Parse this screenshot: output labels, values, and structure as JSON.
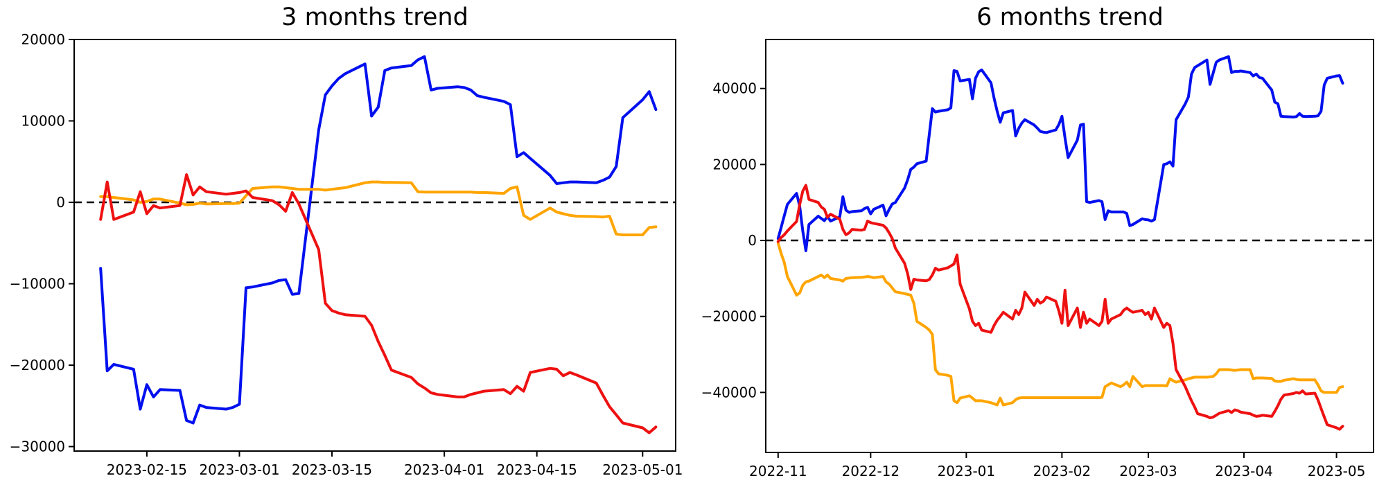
{
  "figure": {
    "background": "#ffffff"
  },
  "chart_data": [
    {
      "type": "line",
      "title": "3 months trend",
      "xlabel": "",
      "ylabel": "",
      "grid": false,
      "legend": null,
      "zero_line": {
        "value": 0,
        "style": "dashed",
        "color": "#000000"
      },
      "y_ticks": [
        20000,
        10000,
        0,
        -10000,
        -20000,
        -30000
      ],
      "y_tick_labels": [
        "20000",
        "10000",
        "0",
        "−10000",
        "−20000",
        "−30000"
      ],
      "x_tick_dates": [
        "2023-02-15",
        "2023-03-01",
        "2023-03-15",
        "2023-04-01",
        "2023-04-15",
        "2023-05-01"
      ],
      "x_tick_labels": [
        "2023-02-15",
        "2023-03-01",
        "2023-03-15",
        "2023-04-01",
        "2023-04-15",
        "2023-05-01"
      ],
      "x_range": [
        "2023-02-04",
        "2023-05-06"
      ],
      "y_range": [
        -30550,
        20000
      ],
      "dates": [
        "2023-02-08",
        "2023-02-09",
        "2023-02-10",
        "2023-02-13",
        "2023-02-14",
        "2023-02-15",
        "2023-02-16",
        "2023-02-17",
        "2023-02-20",
        "2023-02-21",
        "2023-02-22",
        "2023-02-23",
        "2023-02-24",
        "2023-02-27",
        "2023-02-28",
        "2023-03-01",
        "2023-03-02",
        "2023-03-03",
        "2023-03-06",
        "2023-03-07",
        "2023-03-08",
        "2023-03-09",
        "2023-03-10",
        "2023-03-13",
        "2023-03-14",
        "2023-03-15",
        "2023-03-16",
        "2023-03-17",
        "2023-03-20",
        "2023-03-21",
        "2023-03-22",
        "2023-03-23",
        "2023-03-24",
        "2023-03-27",
        "2023-03-28",
        "2023-03-29",
        "2023-03-30",
        "2023-03-31",
        "2023-04-03",
        "2023-04-04",
        "2023-04-05",
        "2023-04-06",
        "2023-04-07",
        "2023-04-10",
        "2023-04-11",
        "2023-04-12",
        "2023-04-13",
        "2023-04-14",
        "2023-04-17",
        "2023-04-18",
        "2023-04-19",
        "2023-04-20",
        "2023-04-21",
        "2023-04-24",
        "2023-04-25",
        "2023-04-26",
        "2023-04-27",
        "2023-04-28",
        "2023-05-01",
        "2023-05-02",
        "2023-05-03"
      ],
      "series": [
        {
          "name": "blue-line",
          "color": "#0010ee",
          "values": [
            -8100,
            -20700,
            -19900,
            -20500,
            -25400,
            -22400,
            -23900,
            -23000,
            -23100,
            -26800,
            -27100,
            -24900,
            -25200,
            -25400,
            -25200,
            -24800,
            -10500,
            -10400,
            -9900,
            -9600,
            -9500,
            -11300,
            -11200,
            8900,
            13200,
            14300,
            15200,
            15800,
            17000,
            10600,
            11700,
            16200,
            16500,
            16800,
            17500,
            17900,
            13800,
            14000,
            14200,
            14100,
            13800,
            13100,
            12900,
            12400,
            12000,
            5600,
            6100,
            5400,
            3300,
            2300,
            2400,
            2500,
            2500,
            2400,
            2700,
            3100,
            4400,
            10400,
            12600,
            13600,
            11400
          ]
        },
        {
          "name": "orange-line",
          "color": "#ffa500",
          "values": [
            700,
            700,
            600,
            300,
            0,
            100,
            400,
            400,
            -100,
            -300,
            -250,
            -100,
            -200,
            -150,
            -150,
            -100,
            800,
            1700,
            1900,
            1900,
            1800,
            1700,
            1600,
            1600,
            1500,
            1600,
            1700,
            1800,
            2400,
            2500,
            2500,
            2450,
            2450,
            2400,
            1300,
            1250,
            1250,
            1250,
            1250,
            1250,
            1250,
            1200,
            1200,
            1100,
            1700,
            1900,
            -1600,
            -2100,
            -700,
            -1200,
            -1400,
            -1600,
            -1700,
            -1750,
            -1800,
            -1700,
            -3900,
            -4000,
            -4000,
            -3100,
            -3000
          ]
        },
        {
          "name": "red-line",
          "color": "#ee1111",
          "values": [
            -2100,
            2500,
            -2100,
            -1200,
            1300,
            -1400,
            -400,
            -700,
            -400,
            3400,
            900,
            1900,
            1300,
            1000,
            1100,
            1200,
            1400,
            600,
            200,
            -300,
            -1100,
            1200,
            -200,
            -5800,
            -12400,
            -13300,
            -13600,
            -13800,
            -14000,
            -15100,
            -17100,
            -18800,
            -20600,
            -21500,
            -22300,
            -22800,
            -23400,
            -23600,
            -23900,
            -23900,
            -23600,
            -23400,
            -23200,
            -23000,
            -23500,
            -22600,
            -23200,
            -20900,
            -20400,
            -20500,
            -21300,
            -20900,
            -21200,
            -22200,
            -23700,
            -25100,
            -26100,
            -27100,
            -27700,
            -28300,
            -27600
          ]
        }
      ]
    },
    {
      "type": "line",
      "title": "6 months trend",
      "xlabel": "",
      "ylabel": "",
      "grid": false,
      "legend": null,
      "zero_line": {
        "value": 0,
        "style": "dashed",
        "color": "#000000"
      },
      "y_ticks": [
        40000,
        20000,
        0,
        -20000,
        -40000
      ],
      "y_tick_labels": [
        "40000",
        "20000",
        "0",
        "−20000",
        "−40000"
      ],
      "x_tick_dates": [
        "2022-11-01",
        "2022-12-01",
        "2023-01-01",
        "2023-02-01",
        "2023-03-01",
        "2023-04-01",
        "2023-05-01"
      ],
      "x_tick_labels": [
        "2022-11",
        "2022-12",
        "2023-01",
        "2023-02",
        "2023-03",
        "2023-04",
        "2023-05"
      ],
      "x_range": [
        "2022-10-28",
        "2023-05-13"
      ],
      "y_range": [
        -55800,
        52900
      ],
      "dates": [
        "2022-11-01",
        "2022-11-02",
        "2022-11-03",
        "2022-11-04",
        "2022-11-07",
        "2022-11-08",
        "2022-11-09",
        "2022-11-10",
        "2022-11-11",
        "2022-11-14",
        "2022-11-15",
        "2022-11-16",
        "2022-11-17",
        "2022-11-18",
        "2022-11-21",
        "2022-11-22",
        "2022-11-23",
        "2022-11-24",
        "2022-11-25",
        "2022-11-28",
        "2022-11-29",
        "2022-11-30",
        "2022-12-01",
        "2022-12-02",
        "2022-12-05",
        "2022-12-06",
        "2022-12-07",
        "2022-12-08",
        "2022-12-09",
        "2022-12-12",
        "2022-12-13",
        "2022-12-14",
        "2022-12-15",
        "2022-12-16",
        "2022-12-19",
        "2022-12-20",
        "2022-12-21",
        "2022-12-22",
        "2022-12-23",
        "2022-12-26",
        "2022-12-27",
        "2022-12-28",
        "2022-12-29",
        "2022-12-30",
        "2023-01-02",
        "2023-01-03",
        "2023-01-04",
        "2023-01-05",
        "2023-01-06",
        "2023-01-09",
        "2023-01-10",
        "2023-01-11",
        "2023-01-12",
        "2023-01-13",
        "2023-01-16",
        "2023-01-17",
        "2023-01-18",
        "2023-01-19",
        "2023-01-20",
        "2023-01-23",
        "2023-01-24",
        "2023-01-25",
        "2023-01-26",
        "2023-01-27",
        "2023-01-30",
        "2023-01-31",
        "2023-02-01",
        "2023-02-02",
        "2023-02-03",
        "2023-02-06",
        "2023-02-07",
        "2023-02-08",
        "2023-02-09",
        "2023-02-10",
        "2023-02-13",
        "2023-02-14",
        "2023-02-15",
        "2023-02-16",
        "2023-02-17",
        "2023-02-20",
        "2023-02-21",
        "2023-02-22",
        "2023-02-23",
        "2023-02-24",
        "2023-02-27",
        "2023-02-28",
        "2023-03-01",
        "2023-03-02",
        "2023-03-03",
        "2023-03-06",
        "2023-03-07",
        "2023-03-08",
        "2023-03-09",
        "2023-03-10",
        "2023-03-13",
        "2023-03-14",
        "2023-03-15",
        "2023-03-16",
        "2023-03-17",
        "2023-03-20",
        "2023-03-21",
        "2023-03-22",
        "2023-03-23",
        "2023-03-24",
        "2023-03-27",
        "2023-03-28",
        "2023-03-29",
        "2023-03-30",
        "2023-03-31",
        "2023-04-03",
        "2023-04-04",
        "2023-04-05",
        "2023-04-06",
        "2023-04-07",
        "2023-04-10",
        "2023-04-11",
        "2023-04-12",
        "2023-04-13",
        "2023-04-14",
        "2023-04-17",
        "2023-04-18",
        "2023-04-19",
        "2023-04-20",
        "2023-04-21",
        "2023-04-24",
        "2023-04-25",
        "2023-04-26",
        "2023-04-27",
        "2023-04-28",
        "2023-05-01",
        "2023-05-02",
        "2023-05-03"
      ],
      "series": [
        {
          "name": "blue-line",
          "color": "#0010ee",
          "values": [
            500,
            3500,
            6500,
            9500,
            12400,
            9000,
            2500,
            -2700,
            4200,
            6400,
            5800,
            5200,
            6300,
            5100,
            6200,
            11500,
            8000,
            7400,
            7600,
            7800,
            8400,
            8700,
            7000,
            8200,
            9300,
            6500,
            8200,
            9600,
            10000,
            13800,
            16000,
            18700,
            19300,
            20200,
            20900,
            27800,
            34700,
            33800,
            34000,
            34400,
            34900,
            44700,
            44500,
            42000,
            42400,
            37300,
            42700,
            44400,
            44900,
            41500,
            37500,
            34000,
            31100,
            33600,
            34200,
            27500,
            29500,
            30900,
            31800,
            30400,
            29600,
            28700,
            28500,
            28400,
            29100,
            30500,
            32700,
            27000,
            21800,
            26400,
            30400,
            30600,
            10200,
            10000,
            10500,
            10200,
            5500,
            7800,
            7500,
            7500,
            7500,
            7100,
            3900,
            4200,
            5700,
            5500,
            5400,
            5100,
            5500,
            20000,
            20200,
            20700,
            19600,
            31800,
            36000,
            37800,
            43800,
            45500,
            46000,
            47500,
            41100,
            44000,
            46900,
            47500,
            48400,
            44200,
            44500,
            44500,
            44600,
            44200,
            43300,
            43800,
            42900,
            42700,
            39600,
            36400,
            36000,
            32700,
            32600,
            32500,
            32600,
            33400,
            32700,
            32600,
            32700,
            32800,
            34000,
            40900,
            42700,
            43300,
            43400,
            41400
          ]
        },
        {
          "name": "orange-line",
          "color": "#ffa500",
          "values": [
            -700,
            -3500,
            -5800,
            -9500,
            -14400,
            -13800,
            -11800,
            -10900,
            -10700,
            -9500,
            -9100,
            -9800,
            -9100,
            -10000,
            -10400,
            -10700,
            -10000,
            -9900,
            -9800,
            -9700,
            -9600,
            -9500,
            -9600,
            -9800,
            -9500,
            -10900,
            -11500,
            -12500,
            -13500,
            -14000,
            -14200,
            -14400,
            -16500,
            -21300,
            -22900,
            -23600,
            -24700,
            -34000,
            -35100,
            -35500,
            -35800,
            -42200,
            -42700,
            -41500,
            -40900,
            -41500,
            -42200,
            -42200,
            -42200,
            -42700,
            -43000,
            -43300,
            -41500,
            -43300,
            -42700,
            -41900,
            -41500,
            -41400,
            -41400,
            -41400,
            -41400,
            -41400,
            -41400,
            -41400,
            -41400,
            -41400,
            -41400,
            -41400,
            -41400,
            -41400,
            -41400,
            -41400,
            -41400,
            -41400,
            -41400,
            -41300,
            -38500,
            -38000,
            -37500,
            -38500,
            -38000,
            -37300,
            -38500,
            -35800,
            -38500,
            -38200,
            -38200,
            -38200,
            -38200,
            -38200,
            -38300,
            -36400,
            -36900,
            -37300,
            -36700,
            -36400,
            -36200,
            -36000,
            -36000,
            -36000,
            -35900,
            -35800,
            -35100,
            -34000,
            -34000,
            -34100,
            -34200,
            -34100,
            -34000,
            -34000,
            -36400,
            -36200,
            -36200,
            -36200,
            -36300,
            -37000,
            -37100,
            -37100,
            -36800,
            -36400,
            -36600,
            -36700,
            -36700,
            -36700,
            -36700,
            -38000,
            -39600,
            -40000,
            -40000,
            -40000,
            -38700,
            -38500
          ]
        },
        {
          "name": "red-line",
          "color": "#ee1111",
          "values": [
            -300,
            800,
            1500,
            2500,
            5000,
            9500,
            13000,
            14500,
            10800,
            10000,
            8800,
            8200,
            6100,
            6900,
            5600,
            2900,
            1500,
            2000,
            2900,
            2700,
            2900,
            5100,
            4700,
            4500,
            4000,
            3300,
            2000,
            500,
            -2000,
            -6000,
            -8800,
            -12900,
            -10200,
            -10400,
            -10600,
            -10300,
            -9100,
            -7300,
            -7800,
            -7200,
            -6700,
            -6200,
            -3800,
            -11500,
            -18000,
            -21300,
            -22400,
            -21800,
            -23600,
            -24200,
            -22400,
            -21000,
            -20000,
            -18900,
            -20700,
            -18400,
            -19500,
            -17800,
            -13600,
            -17100,
            -15500,
            -16500,
            -16000,
            -14900,
            -16000,
            -18500,
            -21800,
            -13100,
            -22400,
            -17800,
            -22900,
            -18900,
            -21800,
            -20700,
            -22400,
            -21300,
            -15500,
            -21800,
            -20700,
            -19500,
            -18400,
            -17800,
            -18400,
            -18900,
            -18400,
            -19500,
            -18900,
            -20700,
            -17800,
            -22900,
            -21800,
            -22400,
            -27100,
            -34000,
            -38500,
            -40400,
            -42200,
            -43800,
            -45600,
            -46300,
            -46700,
            -46500,
            -46000,
            -45500,
            -44800,
            -45300,
            -44600,
            -44800,
            -45200,
            -45600,
            -46000,
            -46300,
            -46200,
            -46000,
            -46300,
            -45000,
            -43500,
            -41800,
            -40700,
            -40300,
            -40000,
            -40200,
            -39600,
            -40400,
            -40200,
            -42000,
            -44200,
            -46400,
            -48500,
            -49300,
            -49700,
            -48900
          ]
        }
      ]
    }
  ]
}
